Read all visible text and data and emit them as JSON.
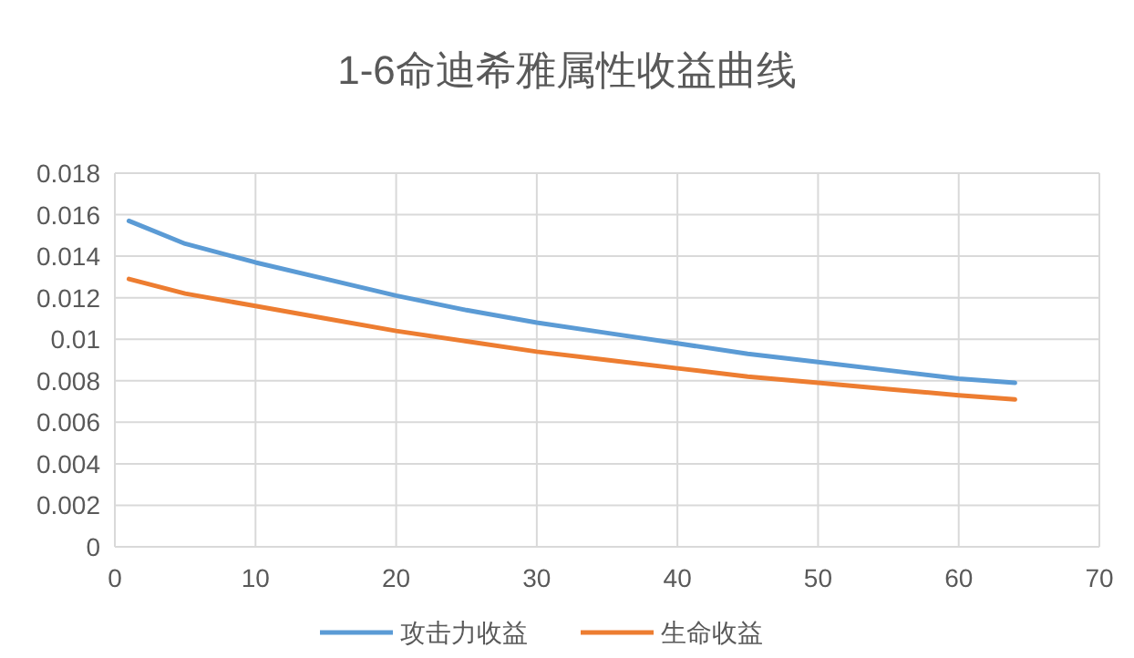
{
  "chart_data": {
    "type": "line",
    "title": "1-6命迪希雅属性收益曲线",
    "x": [
      1,
      5,
      10,
      15,
      20,
      25,
      30,
      35,
      40,
      45,
      50,
      55,
      60,
      64
    ],
    "series": [
      {
        "name": "攻击力收益",
        "color": "#5b9bd5",
        "values": [
          0.0157,
          0.0146,
          0.0137,
          0.0129,
          0.0121,
          0.0114,
          0.0108,
          0.0103,
          0.0098,
          0.0093,
          0.0089,
          0.0085,
          0.0081,
          0.0079
        ]
      },
      {
        "name": "生命收益",
        "color": "#ed7d31",
        "values": [
          0.0129,
          0.0122,
          0.0116,
          0.011,
          0.0104,
          0.0099,
          0.0094,
          0.009,
          0.0086,
          0.0082,
          0.0079,
          0.0076,
          0.0073,
          0.0071
        ]
      }
    ],
    "xlim": [
      0,
      70
    ],
    "xticks": [
      0,
      10,
      20,
      30,
      40,
      50,
      60,
      70
    ],
    "ylim": [
      0,
      0.018
    ],
    "yticks": [
      0,
      0.002,
      0.004,
      0.006,
      0.008,
      0.01,
      0.012,
      0.014,
      0.016,
      0.018
    ],
    "grid": true,
    "legend": "bottom"
  }
}
